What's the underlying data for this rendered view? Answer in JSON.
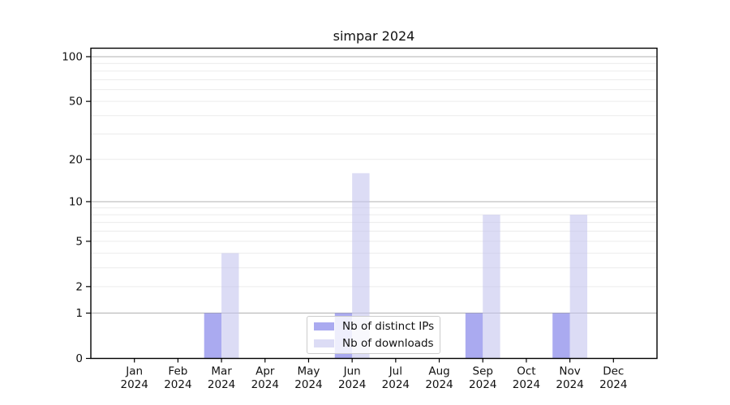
{
  "title": "simpar 2024",
  "chart_data": {
    "type": "bar",
    "title": "simpar 2024",
    "x_months": [
      "Jan",
      "Feb",
      "Mar",
      "Apr",
      "May",
      "Jun",
      "Jul",
      "Aug",
      "Sep",
      "Oct",
      "Nov",
      "Dec"
    ],
    "x_year": "2024",
    "series": [
      {
        "name": "Nb of distinct IPs",
        "color": "#aaaaf0",
        "values": [
          0,
          0,
          1,
          0,
          0,
          1,
          0,
          0,
          1,
          0,
          1,
          0
        ]
      },
      {
        "name": "Nb of downloads",
        "color": "#dcdcf5",
        "values": [
          0,
          0,
          4,
          0,
          0,
          16,
          0,
          0,
          8,
          0,
          8,
          0
        ]
      }
    ],
    "yscale": "log1p",
    "ylim": [
      0,
      114
    ],
    "ytick_values": [
      0,
      1,
      2,
      5,
      10,
      20,
      50,
      100
    ],
    "ytick_labels": [
      "0",
      "1",
      "2",
      "5",
      "10",
      "20",
      "50",
      "100"
    ],
    "minor_grid_values": [
      2,
      3,
      4,
      5,
      6,
      7,
      8,
      9,
      20,
      30,
      40,
      50,
      60,
      70,
      80,
      90
    ],
    "major_grid_values": [
      1,
      10,
      100
    ],
    "grid": "horizontal",
    "legend_position": "lower center inside",
    "colors": {
      "minor_grid": "#ececec",
      "major_grid": "#b0b0b0",
      "spine": "#000000",
      "text": "#111111",
      "legend_border": "#cccccc"
    }
  }
}
